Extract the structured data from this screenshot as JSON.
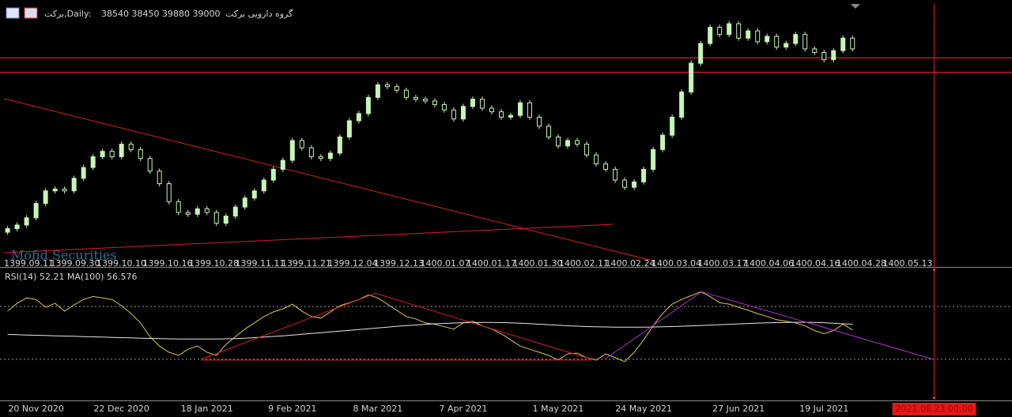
{
  "chart_data": [
    {
      "type": "candlestick",
      "symbol_label": "برکت,Daily:",
      "ohlc_label": "38540 38450 39880 39000",
      "name": "گروه دارویی برکت",
      "watermark": "Mofid Securities",
      "xlim": [
        -0.8,
        105.8
      ],
      "ylim": [
        27000,
        41500
      ],
      "categories": [
        null,
        null,
        null,
        "20 Nov 2020",
        null,
        null,
        null,
        null,
        null,
        null,
        null,
        null,
        "22 Dec 2020",
        null,
        null,
        null,
        null,
        null,
        null,
        null,
        null,
        "18 Jan 2021",
        null,
        null,
        null,
        null,
        null,
        null,
        null,
        null,
        "9 Feb 2021",
        null,
        null,
        null,
        null,
        null,
        null,
        null,
        null,
        "8 Mar 2021",
        null,
        null,
        null,
        null,
        null,
        null,
        null,
        null,
        "7 Apr 2021",
        null,
        null,
        null,
        null,
        null,
        null,
        null,
        null,
        null,
        "1 May 2021",
        null,
        null,
        null,
        null,
        null,
        null,
        null,
        null,
        "24 May 2021",
        null,
        null,
        null,
        null,
        null,
        null,
        null,
        null,
        null,
        "27 Jun 2021",
        null,
        null,
        null,
        null,
        null,
        null,
        null,
        null,
        "19 Jul 2021",
        null,
        null,
        null
      ],
      "categories_fa": [
        "1399.09.11",
        "1399.09.30",
        "1399.10.10",
        "1399.10.16",
        "1399.10.28",
        "1399.11.11",
        "1399.11.21",
        "1399.12.04",
        "1399.12.13",
        "1400.01.07",
        "1400.01.17",
        "1400.01.30",
        "1400.02.11",
        "1400.02.24",
        "1400.03.04",
        "1400.03.17",
        "1400.04.06",
        "1400.04.16",
        "1400.04.28",
        "1400.05.13"
      ],
      "open": [
        28800,
        29000,
        29200,
        29600,
        30400,
        31100,
        31200,
        31100,
        31800,
        32400,
        33000,
        33300,
        33000,
        33700,
        33400,
        32900,
        32200,
        31500,
        30500,
        29900,
        29800,
        30100,
        29900,
        29300,
        29700,
        30200,
        30700,
        31100,
        31700,
        32300,
        32800,
        33900,
        33500,
        33000,
        32900,
        33200,
        34100,
        35000,
        35400,
        36300,
        37000,
        36900,
        36700,
        36300,
        36200,
        36100,
        35900,
        35600,
        35100,
        35800,
        36200,
        35700,
        35500,
        35200,
        35300,
        36000,
        35200,
        34700,
        34100,
        33600,
        33900,
        33700,
        33100,
        32600,
        32300,
        31700,
        31300,
        31600,
        32300,
        33400,
        34200,
        35200,
        36600,
        38200,
        39300,
        40200,
        39800,
        40400,
        39600,
        40000,
        39400,
        39700,
        39100,
        39300,
        39800,
        39000,
        38800,
        38400,
        38900,
        39600
      ],
      "high": [
        29150,
        29350,
        29750,
        30550,
        31250,
        31350,
        31350,
        31950,
        32550,
        33150,
        33450,
        33450,
        33850,
        33850,
        33550,
        33050,
        32350,
        31650,
        30650,
        30050,
        30250,
        30250,
        30050,
        29850,
        30350,
        30850,
        31250,
        31850,
        32450,
        32950,
        34050,
        34050,
        33650,
        33150,
        33350,
        34250,
        35150,
        35550,
        36450,
        37150,
        37150,
        37050,
        36850,
        36450,
        36350,
        36250,
        36050,
        35750,
        35950,
        36350,
        36350,
        35850,
        35650,
        35450,
        36150,
        36150,
        35350,
        34850,
        34250,
        34050,
        34050,
        33850,
        33250,
        32750,
        32450,
        31850,
        31750,
        32450,
        33550,
        34350,
        35350,
        36750,
        38350,
        39450,
        40350,
        40350,
        40550,
        40550,
        40150,
        40150,
        39850,
        39850,
        39450,
        39950,
        39950,
        39150,
        38950,
        39050,
        39750,
        39750
      ],
      "low": [
        28650,
        28850,
        29050,
        29450,
        30250,
        30950,
        30950,
        30950,
        31650,
        32250,
        32850,
        32850,
        32850,
        33250,
        32750,
        32050,
        31350,
        30350,
        29750,
        29650,
        29650,
        29750,
        29150,
        29150,
        29550,
        30050,
        30550,
        30950,
        31550,
        32150,
        32650,
        33350,
        32850,
        32750,
        32750,
        33050,
        33950,
        34850,
        35250,
        36150,
        36750,
        36550,
        36150,
        36050,
        35950,
        35750,
        35450,
        34950,
        34950,
        35650,
        35550,
        35350,
        35050,
        35050,
        35150,
        35050,
        34550,
        33950,
        33450,
        33450,
        33550,
        32950,
        32450,
        32150,
        31550,
        31150,
        31150,
        31450,
        32150,
        33250,
        34050,
        35050,
        36450,
        38050,
        39150,
        39650,
        39650,
        39450,
        39450,
        39250,
        39250,
        38950,
        38950,
        39150,
        38850,
        38650,
        38250,
        38250,
        38750,
        38850
      ],
      "close": [
        29000,
        29200,
        29600,
        30400,
        31100,
        31200,
        31100,
        31800,
        32400,
        33000,
        33300,
        33000,
        33700,
        33400,
        32900,
        32200,
        31500,
        30500,
        29900,
        29800,
        30100,
        29900,
        29300,
        29700,
        30200,
        30700,
        31100,
        31700,
        32300,
        32800,
        33900,
        33500,
        33000,
        32900,
        33200,
        34100,
        35000,
        35400,
        36300,
        37000,
        36900,
        36700,
        36300,
        36200,
        36100,
        35900,
        35600,
        35100,
        35800,
        36200,
        35700,
        35500,
        35200,
        35300,
        36000,
        35200,
        34700,
        34100,
        33600,
        33900,
        33700,
        33100,
        32600,
        32300,
        31700,
        31300,
        31600,
        32300,
        33400,
        34200,
        35200,
        36600,
        38200,
        39300,
        40200,
        39800,
        40400,
        39600,
        40000,
        39400,
        39700,
        39100,
        39300,
        39800,
        39000,
        38800,
        38400,
        38900,
        39600,
        39000
      ],
      "up_color": "#c6f5b4",
      "down_color": "#000000",
      "hlines": [
        38500,
        37700
      ],
      "line_color": "#d8202a",
      "trendlines": [
        {
          "from": [
            -0.4,
            36230
          ],
          "to": [
            67.9,
            27220
          ]
        },
        {
          "from": [
            -0.4,
            27660
          ],
          "to": [
            63.75,
            29240
          ]
        }
      ],
      "cursor": {
        "x": 97.6,
        "label": "2021.08.23 00:00"
      }
    },
    {
      "type": "line",
      "title": "RSI(14) 52.21 MA(100) 56.576",
      "ylim": [
        0,
        100
      ],
      "levels": [
        70,
        30
      ],
      "series": [
        {
          "color": "#d8c850",
          "values": [
            66.5,
            72.4,
            76.5,
            75.3,
            69.4,
            72.4,
            66.5,
            71.2,
            75.3,
            77.6,
            76.5,
            75.3,
            70.6,
            64.7,
            57.6,
            47.1,
            40.0,
            35.3,
            32.9,
            37.6,
            40.0,
            35.3,
            32.9,
            41.2,
            47.1,
            52.9,
            57.6,
            62.4,
            65.9,
            68.2,
            71.8,
            66.5,
            62.4,
            61.2,
            65.9,
            70.6,
            72.9,
            75.3,
            78.8,
            76.5,
            71.8,
            67.1,
            62.4,
            60.6,
            57.6,
            56.5,
            54.7,
            52.9,
            57.6,
            58.8,
            55.3,
            52.9,
            49.4,
            44.7,
            40.0,
            37.6,
            35.3,
            32.9,
            29.4,
            34.1,
            34.7,
            31.2,
            29.4,
            34.1,
            31.2,
            28.2,
            35.3,
            44.7,
            55.3,
            64.7,
            71.8,
            75.3,
            78.2,
            81.2,
            77.6,
            72.9,
            71.8,
            69.4,
            67.1,
            64.7,
            62.4,
            60.0,
            58.8,
            57.6,
            55.3,
            51.8,
            49.4,
            51.8,
            56.5,
            52.2
          ]
        },
        {
          "color": "#e6e6e6",
          "values": [
            48.8,
            48.6,
            48.4,
            48.2,
            48.0,
            47.8,
            47.6,
            47.4,
            47.2,
            47.0,
            46.8,
            46.6,
            46.4,
            46.2,
            46.0,
            45.8,
            45.6,
            45.5,
            45.4,
            45.3,
            45.3,
            45.3,
            45.4,
            45.5,
            45.7,
            46.0,
            46.4,
            46.8,
            47.3,
            47.8,
            48.4,
            49.0,
            49.6,
            50.2,
            50.8,
            51.4,
            52.0,
            52.6,
            53.2,
            53.8,
            54.4,
            55.0,
            55.5,
            56.0,
            56.5,
            56.9,
            57.2,
            57.5,
            57.7,
            57.8,
            57.9,
            57.9,
            57.8,
            57.6,
            57.3,
            57.0,
            56.6,
            56.2,
            55.8,
            55.4,
            55.1,
            54.8,
            54.6,
            54.5,
            54.4,
            54.4,
            54.4,
            54.4,
            54.5,
            54.6,
            54.8,
            55.0,
            55.3,
            55.6,
            55.9,
            56.2,
            56.5,
            56.8,
            57.1,
            57.4,
            57.6,
            57.8,
            57.9,
            58.0,
            58.0,
            57.9,
            57.7,
            57.3,
            56.9,
            56.6
          ]
        }
      ],
      "trendlines": [
        {
          "from": [
            20.4,
            30
          ],
          "to": [
            38.75,
            80
          ],
          "color": "#d8202a"
        },
        {
          "from": [
            38.75,
            80
          ],
          "to": [
            61.5,
            30
          ],
          "color": "#d8202a"
        },
        {
          "from": [
            20.4,
            29.4
          ],
          "to": [
            61.5,
            29.4
          ],
          "color": "#d8202a"
        },
        {
          "from": [
            62.9,
            30
          ],
          "to": [
            73.1,
            81.2
          ],
          "color": "#b030c8"
        },
        {
          "from": [
            73.1,
            81.2
          ],
          "to": [
            97.5,
            30
          ],
          "color": "#b030c8"
        }
      ]
    }
  ]
}
